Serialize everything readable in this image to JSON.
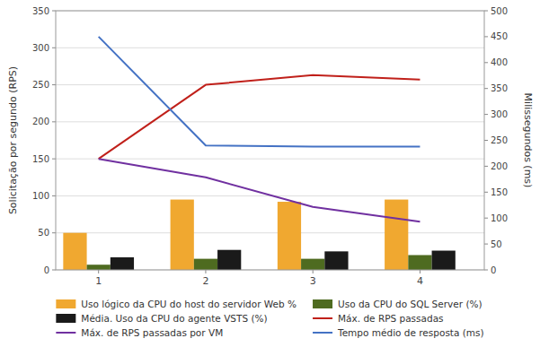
{
  "chart_data": {
    "type": "bar",
    "x": [
      1,
      2,
      3,
      4
    ],
    "xlim": [
      0.6,
      4.6
    ],
    "xticks": [
      1,
      2,
      3,
      4
    ],
    "ylim": [
      0,
      350
    ],
    "yticks": [
      0,
      50,
      100,
      150,
      200,
      250,
      300,
      350
    ],
    "y2lim": [
      0,
      500
    ],
    "y2ticks": [
      0,
      50,
      100,
      150,
      200,
      250,
      300,
      350,
      400,
      450,
      500
    ],
    "ylabel": "Solicitação por segundo (RPS)",
    "y2label": "Milissegundos (ms)",
    "grid": true,
    "legend": "bottom",
    "series": [
      {
        "name": "Uso lógico da CPU do host do servidor Web %",
        "type": "bar",
        "color": "#f0a830",
        "values": [
          50,
          95,
          92,
          95
        ]
      },
      {
        "name": "Uso da CPU do SQL Server (%)",
        "type": "bar",
        "color": "#4e6b20",
        "values": [
          7,
          15,
          15,
          20
        ]
      },
      {
        "name": "Média. Uso da CPU do agente VSTS (%)",
        "type": "bar",
        "color": "#1a1a1a",
        "values": [
          17,
          27,
          25,
          26
        ]
      },
      {
        "name": "Máx. de RPS passadas",
        "type": "line",
        "color": "#c0201a",
        "values": [
          150,
          250,
          263,
          257
        ]
      },
      {
        "name": "Máx. de RPS passadas por VM",
        "type": "line",
        "color": "#7030a0",
        "values": [
          150,
          125,
          85,
          65
        ]
      },
      {
        "name": "Tempo médio de resposta (ms)",
        "type": "line",
        "color": "#4472c4",
        "values": [
          450,
          240,
          238,
          238
        ],
        "axis": "y2"
      }
    ]
  }
}
